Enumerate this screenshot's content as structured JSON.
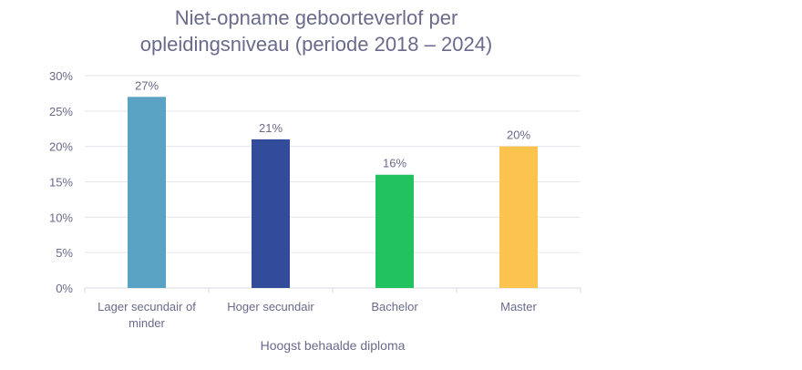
{
  "chart_data": {
    "type": "bar",
    "title_lines": [
      "Niet-opname geboorteverlof per",
      "opleidingsniveau (periode 2018 – 2024)"
    ],
    "categories": [
      [
        "Lager secundair of",
        "minder"
      ],
      [
        "Hoger secundair"
      ],
      [
        "Bachelor"
      ],
      [
        "Master"
      ]
    ],
    "values": [
      27,
      21,
      16,
      20
    ],
    "data_labels": [
      "27%",
      "21%",
      "16%",
      "20%"
    ],
    "colors": [
      "#5ba3c4",
      "#324c9b",
      "#22c35e",
      "#fdc34f"
    ],
    "xlabel": "Hoogst behaalde diploma",
    "ylabel": "",
    "ylim": [
      0,
      30
    ],
    "yticks": [
      0,
      5,
      10,
      15,
      20,
      25,
      30
    ],
    "ytick_labels": [
      "0%",
      "5%",
      "10%",
      "15%",
      "20%",
      "25%",
      "30%"
    ],
    "grid": true,
    "legend": "none"
  }
}
